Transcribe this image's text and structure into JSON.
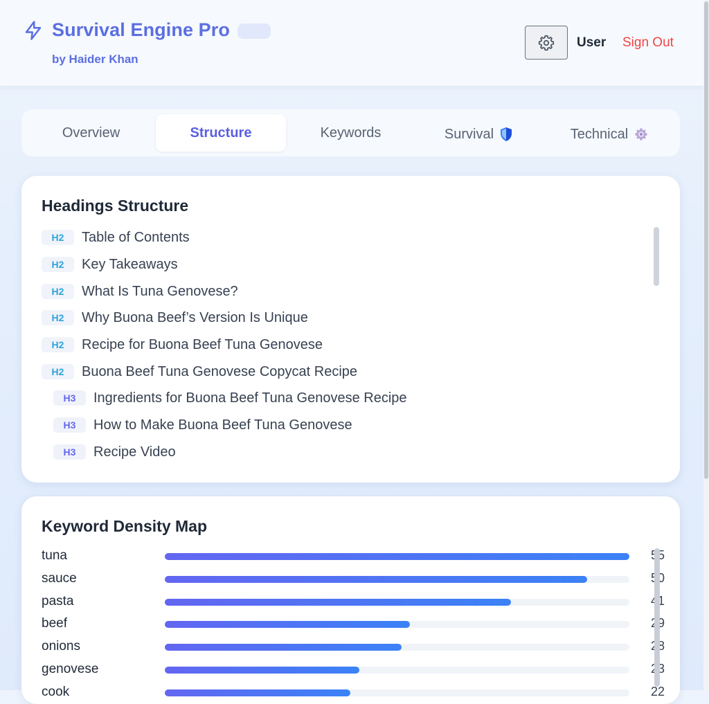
{
  "header": {
    "title": "Survival Engine Pro",
    "byline": "by Haider Khan",
    "user_label": "User",
    "signout_label": "Sign Out"
  },
  "tabs": [
    {
      "label": "Overview",
      "active": false,
      "icon": ""
    },
    {
      "label": "Structure",
      "active": true,
      "icon": ""
    },
    {
      "label": "Keywords",
      "active": false,
      "icon": ""
    },
    {
      "label": "Survival",
      "active": false,
      "icon": "shield-icon"
    },
    {
      "label": "Technical",
      "active": false,
      "icon": "gear-icon"
    }
  ],
  "headings": {
    "title": "Headings Structure",
    "items": [
      {
        "level": "H2",
        "text": "Table of Contents"
      },
      {
        "level": "H2",
        "text": "Key Takeaways"
      },
      {
        "level": "H2",
        "text": "What Is Tuna Genovese?"
      },
      {
        "level": "H2",
        "text": "Why Buona Beef’s Version Is Unique"
      },
      {
        "level": "H2",
        "text": "Recipe for Buona Beef Tuna Genovese"
      },
      {
        "level": "H2",
        "text": "Buona Beef Tuna Genovese Copycat Recipe"
      },
      {
        "level": "H3",
        "text": "Ingredients for Buona Beef Tuna Genovese Recipe"
      },
      {
        "level": "H3",
        "text": "How to Make Buona Beef Tuna Genovese"
      },
      {
        "level": "H3",
        "text": "Recipe Video"
      }
    ]
  },
  "keywords": {
    "title": "Keyword Density Map",
    "items": [
      {
        "word": "tuna",
        "count": "55",
        "value": 55
      },
      {
        "word": "sauce",
        "count": "50",
        "value": 50
      },
      {
        "word": "pasta",
        "count": "41",
        "value": 41
      },
      {
        "word": "beef",
        "count": "29",
        "value": 29
      },
      {
        "word": "onions",
        "count": "28",
        "value": 28
      },
      {
        "word": "genovese",
        "count": "23",
        "value": 23
      },
      {
        "word": "cook",
        "count": "22",
        "value": 22
      }
    ],
    "max": 55
  },
  "colors": {
    "accent": "#5b6fe0",
    "signout": "#ef4444",
    "h2_tag": "#2ea3dc",
    "h3_tag": "#6366f1"
  }
}
